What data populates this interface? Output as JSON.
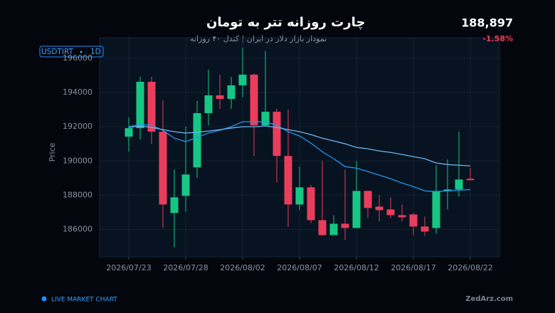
{
  "header": {
    "title": "چارت روزانه تتر به تومان",
    "subtitle": "نمودار بازار دلار در ایران | کندل ۴۰ روزانه",
    "symbol": "USDTIRT",
    "interval": "1D",
    "price": "188,897",
    "change": "-1.58%"
  },
  "footer": {
    "live": "LIVE MARKET CHART",
    "brand": "ZedArz.com"
  },
  "chart_data": {
    "type": "candlestick",
    "y_label": "Price",
    "categories": [
      "2026/07/23",
      null,
      null,
      null,
      null,
      "2026/07/28",
      null,
      null,
      null,
      null,
      "2026/08/02",
      null,
      null,
      null,
      null,
      "2026/08/07",
      null,
      null,
      null,
      null,
      "2026/08/12",
      null,
      null,
      null,
      null,
      "2026/08/17",
      null,
      null,
      null,
      null,
      "2026/08/22"
    ],
    "open": [
      191417,
      191917,
      194625,
      191708,
      186958,
      187958,
      189625,
      192792,
      193833,
      193625,
      194417,
      195042,
      192083,
      192875,
      190292,
      187458,
      188458,
      186542,
      185667,
      186333,
      186083,
      188250,
      187333,
      187167,
      186833,
      186875,
      186167,
      186083,
      188250,
      188333,
      188958
    ],
    "high": [
      192542,
      194917,
      194917,
      193542,
      189500,
      192000,
      193500,
      195333,
      195042,
      194917,
      196625,
      195125,
      196417,
      193042,
      193000,
      189667,
      188583,
      190000,
      186833,
      189500,
      190000,
      188250,
      188000,
      187875,
      187458,
      186958,
      186750,
      189750,
      190083,
      191708,
      189583
    ],
    "low": [
      190542,
      191250,
      191000,
      186083,
      184958,
      187042,
      189000,
      192083,
      193042,
      193042,
      193708,
      190292,
      192000,
      188750,
      186167,
      187125,
      186375,
      185625,
      185667,
      185375,
      186083,
      186667,
      186458,
      186667,
      186458,
      185667,
      185625,
      185750,
      187167,
      187917,
      188875
    ],
    "close": [
      191917,
      194625,
      191708,
      187458,
      187875,
      189208,
      192792,
      193833,
      193625,
      194417,
      195042,
      192083,
      192875,
      190292,
      187458,
      188458,
      186542,
      185667,
      186333,
      186083,
      188250,
      187250,
      187125,
      186833,
      186708,
      186167,
      185875,
      188250,
      188333,
      188917,
      188875
    ],
    "up_color": "#16c784",
    "down_color": "#ea3d5c",
    "moving_averages": [
      {
        "color": "#2196f3",
        "values": [
          192000,
          192130,
          192080,
          191790,
          191330,
          191130,
          191380,
          191630,
          191790,
          192000,
          192290,
          192290,
          192290,
          192080,
          191710,
          191460,
          191040,
          190540,
          190130,
          189670,
          189580,
          189380,
          189170,
          188960,
          188710,
          188500,
          188250,
          188210,
          188250,
          188290,
          188330
        ]
      },
      {
        "color": "#6cb6f5",
        "values": [
          191960,
          192040,
          191960,
          191830,
          191710,
          191630,
          191670,
          191750,
          191830,
          191920,
          192000,
          192000,
          192040,
          191960,
          191830,
          191710,
          191540,
          191330,
          191170,
          191000,
          190790,
          190710,
          190580,
          190500,
          190380,
          190250,
          190130,
          189880,
          189790,
          189750,
          189710
        ]
      }
    ],
    "ylim": [
      184400,
      197200
    ],
    "yticks": [
      186000,
      188000,
      190000,
      192000,
      194000,
      196000
    ],
    "grid": true
  }
}
